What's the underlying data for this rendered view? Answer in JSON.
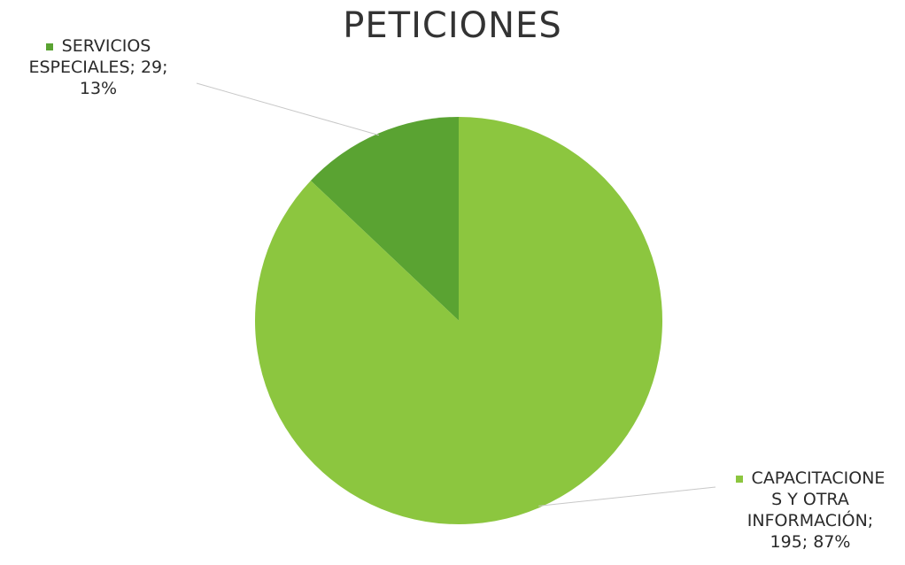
{
  "chart_data": {
    "type": "pie",
    "title": "PETICIONES",
    "categories": [
      "SERVICIOS ESPECIALES",
      "CAPACITACIONES Y OTRA INFORMACIÓN"
    ],
    "values": [
      29,
      195
    ],
    "percentages": [
      13,
      87
    ],
    "colors": [
      "#5aa332",
      "#8cc63f"
    ],
    "data_labels": [
      {
        "lines": [
          "SERVICIOS",
          "ESPECIALES; 29;",
          "13%"
        ]
      },
      {
        "lines": [
          "CAPACITACIONE",
          "S Y OTRA",
          "INFORMACIÓN;",
          "195; 87%"
        ]
      }
    ],
    "start_angle_deg": 0,
    "direction": "counterclockwise",
    "leader_lines": true
  }
}
